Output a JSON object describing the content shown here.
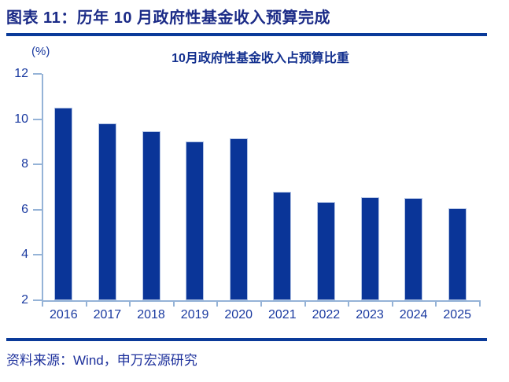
{
  "header": {
    "title": "图表 11：历年 10 月政府性基金收入预算完成"
  },
  "footer": {
    "source": "资料来源：Wind，申万宏源研究"
  },
  "chart_data": {
    "type": "bar",
    "title": "10月政府性基金收入占预算比重",
    "unit_label": "(%)",
    "categories": [
      "2016",
      "2017",
      "2018",
      "2019",
      "2020",
      "2021",
      "2022",
      "2023",
      "2024",
      "2025"
    ],
    "values": [
      10.5,
      9.8,
      9.45,
      9.0,
      9.15,
      6.8,
      6.35,
      6.55,
      6.5,
      6.05
    ],
    "xlabel": "",
    "ylabel": "(%)",
    "ylim": [
      2,
      12
    ],
    "yticks": [
      12,
      10,
      8,
      6,
      4,
      2
    ],
    "grid": false,
    "legend": "none",
    "bar_color": "#0a3598",
    "axis_color": "#95b3d7",
    "tick_label_color": "#1a3aa0"
  }
}
